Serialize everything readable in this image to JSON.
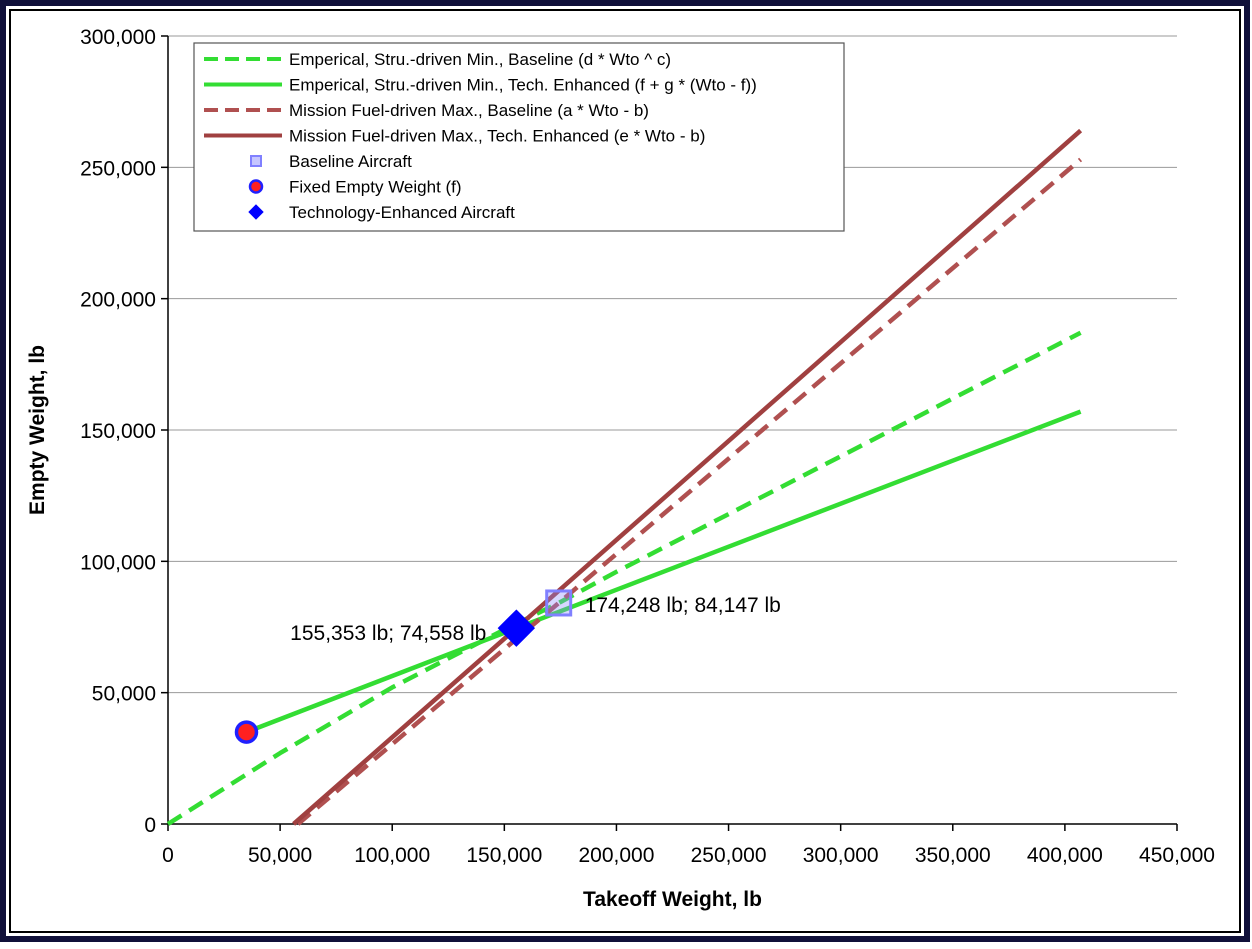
{
  "chart_data": {
    "type": "line",
    "xlabel": "Takeoff Weight, lb",
    "ylabel": "Empty Weight, lb",
    "xlim": [
      0,
      450000
    ],
    "ylim": [
      0,
      300000
    ],
    "grid": "horizontal",
    "legend_position": "top-left",
    "x_ticks": [
      0,
      50000,
      100000,
      150000,
      200000,
      250000,
      300000,
      350000,
      400000,
      450000
    ],
    "x_tick_labels": [
      "0",
      "50,000",
      "100,000",
      "150,000",
      "200,000",
      "250,000",
      "300,000",
      "350,000",
      "400,000",
      "450,000"
    ],
    "y_ticks": [
      0,
      50000,
      100000,
      150000,
      200000,
      250000,
      300000
    ],
    "y_tick_labels": [
      "0",
      "50,000",
      "100,000",
      "150,000",
      "200,000",
      "250,000",
      "300,000"
    ],
    "series": [
      {
        "name": "Emperical, Stru.-driven Min., Baseline (d * Wto ^ c)",
        "style": "dashed",
        "color": "#33dd33",
        "x": [
          0,
          50000,
          100000,
          150000,
          174248,
          200000,
          250000,
          300000,
          350000,
          407000
        ],
        "y": [
          0,
          27000,
          52000,
          74000,
          84147,
          96000,
          118000,
          140000,
          162000,
          187000
        ]
      },
      {
        "name": "Emperical, Stru.-driven Min., Tech. Enhanced (f + g * (Wto - f))",
        "style": "solid",
        "color": "#33dd33",
        "x": [
          35000,
          155353,
          407000
        ],
        "y": [
          35000,
          74558,
          157000
        ]
      },
      {
        "name": "Mission Fuel-driven Max., Baseline (a * Wto - b)",
        "style": "dashed",
        "color": "#b05050",
        "x": [
          58000,
          174248,
          407000
        ],
        "y": [
          0,
          84147,
          253000
        ]
      },
      {
        "name": "Mission Fuel-driven Max., Tech. Enhanced (e * Wto - b)",
        "style": "solid",
        "color": "#a04040",
        "x": [
          56000,
          155353,
          407000
        ],
        "y": [
          0,
          74558,
          264000
        ]
      }
    ],
    "markers": [
      {
        "name": "Baseline Aircraft",
        "shape": "square",
        "x": 174248,
        "y": 84147,
        "color": "#8080ff"
      },
      {
        "name": "Fixed Empty Weight (f)",
        "shape": "circle",
        "x": 35000,
        "y": 35000,
        "color": "#2020ff",
        "fill": "#ff2020"
      },
      {
        "name": "Technology-Enhanced Aircraft",
        "shape": "diamond",
        "x": 155353,
        "y": 74558,
        "color": "#0000ff"
      }
    ],
    "annotations": [
      {
        "text": "155,353 lb; 74,558 lb",
        "anchor": "left-of-marker"
      },
      {
        "text": "174,248 lb; 84,147 lb",
        "anchor": "right-of-marker"
      }
    ]
  }
}
